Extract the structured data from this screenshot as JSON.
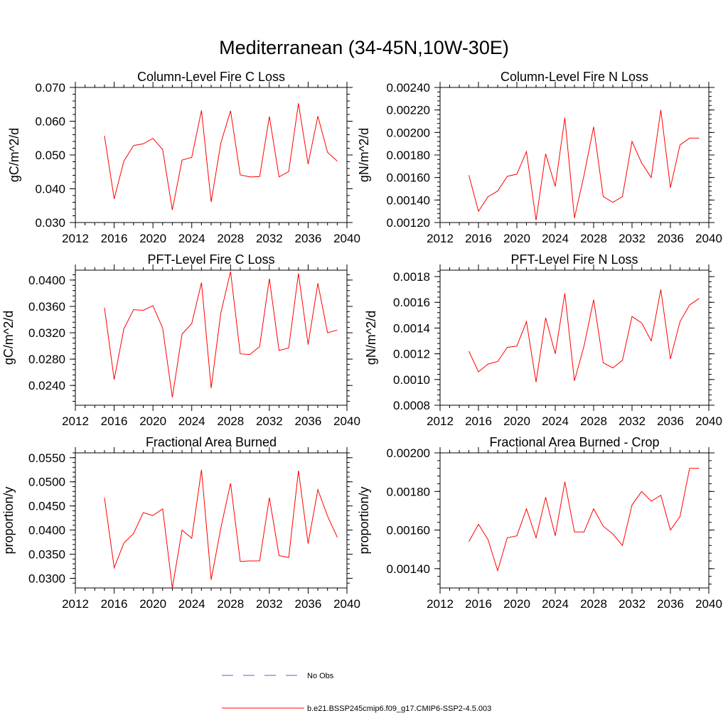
{
  "figure_title": "Mediterranean (34-45N,10W-30E)",
  "legend": {
    "obs_label": "No Obs",
    "obs_color": "#5566cc",
    "model_label": "b.e21.BSSP245cmip6.f09_g17.CMIP6-SSP2-4.5.003",
    "model_color": "#ff0000"
  },
  "chart_data": [
    {
      "type": "line",
      "title": "Column-Level Fire C Loss",
      "ylabel": "gC/m^2/d",
      "xlabel": "",
      "xlim": [
        2012,
        2040
      ],
      "ylim": [
        0.03,
        0.07
      ],
      "xticks": [
        2012,
        2016,
        2020,
        2024,
        2028,
        2032,
        2036,
        2040
      ],
      "xtick_labels": [
        "2012",
        "2016",
        "2020",
        "2024",
        "2028",
        "2032",
        "2036",
        "2040"
      ],
      "yticks": [
        0.03,
        0.04,
        0.05,
        0.06,
        0.07
      ],
      "ytick_labels": [
        "0.030",
        "0.040",
        "0.050",
        "0.060",
        "0.070"
      ],
      "series": [
        {
          "name": "b.e21.BSSP245cmip6.f09_g17.CMIP6-SSP2-4.5.003",
          "x": [
            2015,
            2016,
            2017,
            2018,
            2019,
            2020,
            2021,
            2022,
            2023,
            2024,
            2025,
            2026,
            2027,
            2028,
            2029,
            2030,
            2031,
            2032,
            2033,
            2034,
            2035,
            2036,
            2037,
            2038,
            2039
          ],
          "values": [
            0.0557,
            0.037,
            0.0482,
            0.0528,
            0.0533,
            0.0549,
            0.0516,
            0.0337,
            0.0485,
            0.0493,
            0.0632,
            0.0361,
            0.0535,
            0.0631,
            0.0441,
            0.0435,
            0.0436,
            0.0614,
            0.0435,
            0.0451,
            0.0653,
            0.0473,
            0.0615,
            0.0508,
            0.0482
          ]
        }
      ]
    },
    {
      "type": "line",
      "title": "Column-Level Fire N Loss",
      "ylabel": "gN/m^2/d",
      "xlabel": "",
      "xlim": [
        2012,
        2040
      ],
      "ylim": [
        0.0012,
        0.0024
      ],
      "xticks": [
        2012,
        2016,
        2020,
        2024,
        2028,
        2032,
        2036,
        2040
      ],
      "xtick_labels": [
        "2012",
        "2016",
        "2020",
        "2024",
        "2028",
        "2032",
        "2036",
        "2040"
      ],
      "yticks": [
        0.0012,
        0.0014,
        0.0016,
        0.0018,
        0.002,
        0.0022,
        0.0024
      ],
      "ytick_labels": [
        "0.00120",
        "0.00140",
        "0.00160",
        "0.00180",
        "0.00200",
        "0.00220",
        "0.00240"
      ],
      "series": [
        {
          "name": "b.e21.BSSP245cmip6.f09_g17.CMIP6-SSP2-4.5.003",
          "x": [
            2015,
            2016,
            2017,
            2018,
            2019,
            2020,
            2021,
            2022,
            2023,
            2024,
            2025,
            2026,
            2027,
            2028,
            2029,
            2030,
            2031,
            2032,
            2033,
            2034,
            2035,
            2036,
            2037,
            2038,
            2039
          ],
          "values": [
            0.00162,
            0.0013,
            0.00143,
            0.00148,
            0.00161,
            0.00163,
            0.00183,
            0.00122,
            0.00181,
            0.00152,
            0.00213,
            0.00124,
            0.00162,
            0.00205,
            0.00143,
            0.00138,
            0.00143,
            0.00192,
            0.00173,
            0.0016,
            0.0022,
            0.00151,
            0.00189,
            0.00195,
            0.00195
          ]
        }
      ]
    },
    {
      "type": "line",
      "title": "PFT-Level Fire C Loss",
      "ylabel": "gC/m^2/d",
      "xlabel": "",
      "xlim": [
        2012,
        2040
      ],
      "ylim": [
        0.021,
        0.0415
      ],
      "xticks": [
        2012,
        2016,
        2020,
        2024,
        2028,
        2032,
        2036,
        2040
      ],
      "xtick_labels": [
        "2012",
        "2016",
        "2020",
        "2024",
        "2028",
        "2032",
        "2036",
        "2040"
      ],
      "yticks": [
        0.024,
        0.028,
        0.032,
        0.036,
        0.04
      ],
      "ytick_labels": [
        "0.0240",
        "0.0280",
        "0.0320",
        "0.0360",
        "0.0400"
      ],
      "series": [
        {
          "name": "b.e21.BSSP245cmip6.f09_g17.CMIP6-SSP2-4.5.003",
          "x": [
            2015,
            2016,
            2017,
            2018,
            2019,
            2020,
            2021,
            2022,
            2023,
            2024,
            2025,
            2026,
            2027,
            2028,
            2029,
            2030,
            2031,
            2032,
            2033,
            2034,
            2035,
            2036,
            2037,
            2038,
            2039
          ],
          "values": [
            0.0358,
            0.0249,
            0.0326,
            0.0355,
            0.0354,
            0.0361,
            0.0327,
            0.0222,
            0.0318,
            0.0334,
            0.0396,
            0.0236,
            0.035,
            0.0413,
            0.0288,
            0.0287,
            0.0299,
            0.0402,
            0.0293,
            0.0297,
            0.041,
            0.0302,
            0.0395,
            0.032,
            0.0324
          ]
        }
      ]
    },
    {
      "type": "line",
      "title": "PFT-Level Fire N Loss",
      "ylabel": "gN/m^2/d",
      "xlabel": "",
      "xlim": [
        2012,
        2040
      ],
      "ylim": [
        0.0008,
        0.00185
      ],
      "xticks": [
        2012,
        2016,
        2020,
        2024,
        2028,
        2032,
        2036,
        2040
      ],
      "xtick_labels": [
        "2012",
        "2016",
        "2020",
        "2024",
        "2028",
        "2032",
        "2036",
        "2040"
      ],
      "yticks": [
        0.0008,
        0.001,
        0.0012,
        0.0014,
        0.0016,
        0.0018
      ],
      "ytick_labels": [
        "0.0008",
        "0.0010",
        "0.0012",
        "0.0014",
        "0.0016",
        "0.0018"
      ],
      "series": [
        {
          "name": "b.e21.BSSP245cmip6.f09_g17.CMIP6-SSP2-4.5.003",
          "x": [
            2015,
            2016,
            2017,
            2018,
            2019,
            2020,
            2021,
            2022,
            2023,
            2024,
            2025,
            2026,
            2027,
            2028,
            2029,
            2030,
            2031,
            2032,
            2033,
            2034,
            2035,
            2036,
            2037,
            2038,
            2039
          ],
          "values": [
            0.00122,
            0.00106,
            0.00112,
            0.00114,
            0.00125,
            0.00126,
            0.00145,
            0.00098,
            0.00148,
            0.0012,
            0.00167,
            0.00099,
            0.00126,
            0.00162,
            0.00113,
            0.00109,
            0.00115,
            0.00149,
            0.00144,
            0.0013,
            0.0017,
            0.00116,
            0.00145,
            0.00158,
            0.00163
          ]
        }
      ]
    },
    {
      "type": "line",
      "title": "Fractional Area Burned",
      "ylabel": "proportion/y",
      "xlabel": "",
      "xlim": [
        2012,
        2040
      ],
      "ylim": [
        0.028,
        0.056
      ],
      "xticks": [
        2012,
        2016,
        2020,
        2024,
        2028,
        2032,
        2036,
        2040
      ],
      "xtick_labels": [
        "2012",
        "2016",
        "2020",
        "2024",
        "2028",
        "2032",
        "2036",
        "2040"
      ],
      "yticks": [
        0.03,
        0.035,
        0.04,
        0.045,
        0.05,
        0.055
      ],
      "ytick_labels": [
        "0.0300",
        "0.0350",
        "0.0400",
        "0.0450",
        "0.0500",
        "0.0550"
      ],
      "series": [
        {
          "name": "b.e21.BSSP245cmip6.f09_g17.CMIP6-SSP2-4.5.003",
          "x": [
            2015,
            2016,
            2017,
            2018,
            2019,
            2020,
            2021,
            2022,
            2023,
            2024,
            2025,
            2026,
            2027,
            2028,
            2029,
            2030,
            2031,
            2032,
            2033,
            2034,
            2035,
            2036,
            2037,
            2038,
            2039
          ],
          "values": [
            0.0467,
            0.0322,
            0.0373,
            0.0393,
            0.0436,
            0.043,
            0.0444,
            0.028,
            0.04,
            0.0383,
            0.0525,
            0.0297,
            0.0404,
            0.0497,
            0.0335,
            0.0336,
            0.0336,
            0.0467,
            0.0347,
            0.0343,
            0.0523,
            0.0372,
            0.0484,
            0.0429,
            0.0385
          ]
        }
      ]
    },
    {
      "type": "line",
      "title": "Fractional Area Burned - Crop",
      "ylabel": "proportion/y",
      "xlabel": "",
      "xlim": [
        2012,
        2040
      ],
      "ylim": [
        0.0013,
        0.002
      ],
      "xticks": [
        2012,
        2016,
        2020,
        2024,
        2028,
        2032,
        2036,
        2040
      ],
      "xtick_labels": [
        "2012",
        "2016",
        "2020",
        "2024",
        "2028",
        "2032",
        "2036",
        "2040"
      ],
      "yticks": [
        0.0014,
        0.0016,
        0.0018,
        0.002
      ],
      "ytick_labels": [
        "0.00140",
        "0.00160",
        "0.00180",
        "0.00200"
      ],
      "series": [
        {
          "name": "b.e21.BSSP245cmip6.f09_g17.CMIP6-SSP2-4.5.003",
          "x": [
            2015,
            2016,
            2017,
            2018,
            2019,
            2020,
            2021,
            2022,
            2023,
            2024,
            2025,
            2026,
            2027,
            2028,
            2029,
            2030,
            2031,
            2032,
            2033,
            2034,
            2035,
            2036,
            2037,
            2038,
            2039
          ],
          "values": [
            0.00154,
            0.00163,
            0.00155,
            0.00139,
            0.00156,
            0.00157,
            0.00171,
            0.00156,
            0.00177,
            0.00157,
            0.00185,
            0.00159,
            0.00159,
            0.00171,
            0.00162,
            0.00158,
            0.00152,
            0.00173,
            0.0018,
            0.00175,
            0.00178,
            0.0016,
            0.00167,
            0.00192,
            0.00192
          ]
        }
      ]
    }
  ]
}
